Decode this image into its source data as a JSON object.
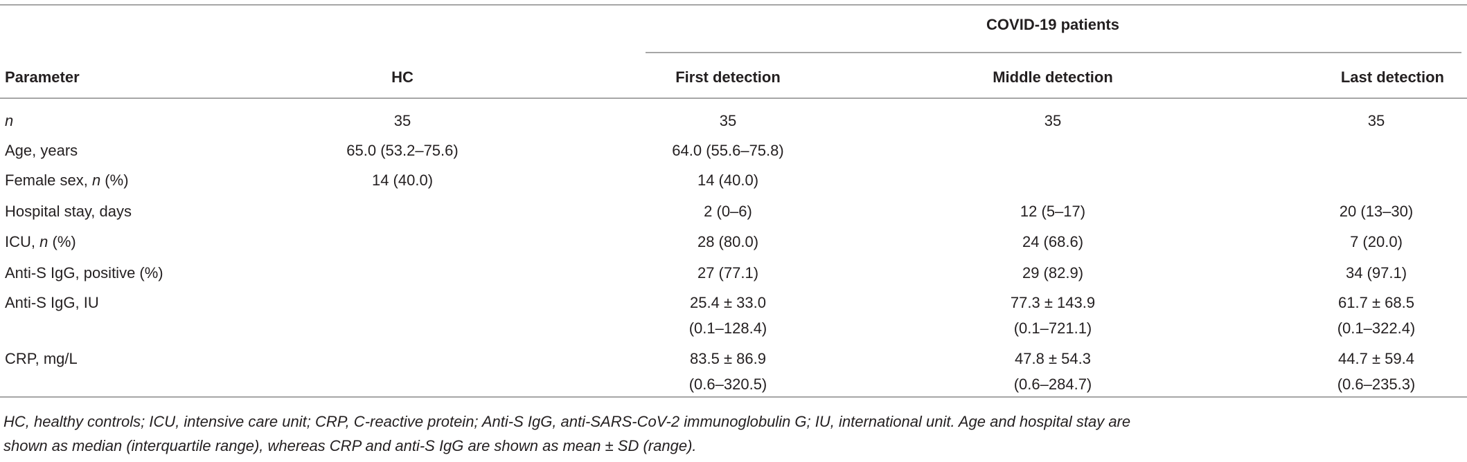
{
  "table": {
    "group_header": "COVID-19 patients",
    "columns": [
      "Parameter",
      "HC",
      "First detection",
      "Middle detection",
      "Last detection"
    ],
    "rows": [
      {
        "label": [
          {
            "text": "n",
            "italic": true
          }
        ],
        "cells": [
          [
            "35"
          ],
          [
            "35"
          ],
          [
            "35"
          ],
          [
            "35"
          ]
        ]
      },
      {
        "label": [
          {
            "text": "Age, years"
          }
        ],
        "cells": [
          [
            "65.0 (53.2–75.6)"
          ],
          [
            "64.0 (55.6–75.8)"
          ],
          null,
          null
        ]
      },
      {
        "label": [
          {
            "text": "Female sex, "
          },
          {
            "text": "n",
            "italic": true
          },
          {
            "text": " (%)"
          }
        ],
        "cells": [
          [
            "14 (40.0)"
          ],
          [
            "14 (40.0)"
          ],
          null,
          null
        ]
      },
      {
        "label": [
          {
            "text": "Hospital stay, days"
          }
        ],
        "cells": [
          null,
          [
            "2 (0–6)"
          ],
          [
            "12 (5–17)"
          ],
          [
            "20 (13–30)"
          ]
        ]
      },
      {
        "label": [
          {
            "text": "ICU, "
          },
          {
            "text": "n",
            "italic": true
          },
          {
            "text": " (%)"
          }
        ],
        "cells": [
          null,
          [
            "28 (80.0)"
          ],
          [
            "24 (68.6)"
          ],
          [
            "7 (20.0)"
          ]
        ]
      },
      {
        "label": [
          {
            "text": "Anti-S IgG, positive (%)"
          }
        ],
        "cells": [
          null,
          [
            "27 (77.1)"
          ],
          [
            "29 (82.9)"
          ],
          [
            "34 (97.1)"
          ]
        ]
      },
      {
        "label": [
          {
            "text": "Anti-S IgG, IU"
          }
        ],
        "cells": [
          null,
          [
            "25.4 ± 33.0",
            "(0.1–128.4)"
          ],
          [
            "77.3 ± 143.9",
            "(0.1–721.1)"
          ],
          [
            "61.7 ± 68.5",
            "(0.1–322.4)"
          ]
        ]
      },
      {
        "label": [
          {
            "text": "CRP, mg/L"
          }
        ],
        "cells": [
          null,
          [
            "83.5 ± 86.9",
            "(0.6–320.5)"
          ],
          [
            "47.8 ± 54.3",
            "(0.6–284.7)"
          ],
          [
            "44.7 ± 59.4",
            "(0.6–235.3)"
          ]
        ]
      }
    ],
    "footnote": [
      "HC, healthy controls; ICU, intensive care unit; CRP, C-reactive protein; Anti-S IgG, anti-SARS-CoV-2 immunoglobulin G; IU, international unit. Age and hospital stay are",
      "shown as median (interquartile range), whereas CRP and anti-S IgG are shown as mean ± SD (range)."
    ]
  }
}
